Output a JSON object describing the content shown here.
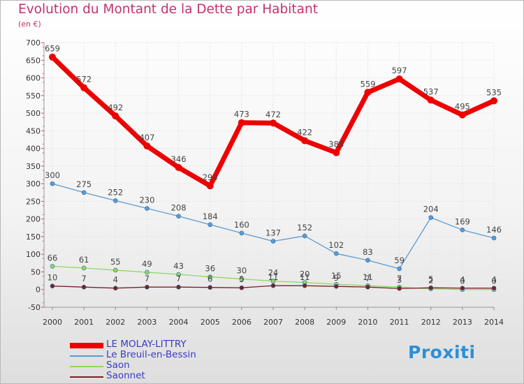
{
  "header": {
    "title": "Evolution du Montant de la Dette par Habitant",
    "subtitle": "(en €)"
  },
  "logo": {
    "text": "Proxiti"
  },
  "chart_data": {
    "type": "line",
    "title": "Evolution du Montant de la Dette par Habitant",
    "subtitle": "(en €)",
    "xlabel": "",
    "ylabel": "",
    "x": [
      "2000",
      "2001",
      "2002",
      "2003",
      "2004",
      "2005",
      "2006",
      "2007",
      "2008",
      "2009",
      "2010",
      "2011",
      "2012",
      "2013",
      "2014"
    ],
    "ylim": [
      -50,
      700
    ],
    "yticks": [
      -50,
      0,
      50,
      100,
      150,
      200,
      250,
      300,
      350,
      400,
      450,
      500,
      550,
      600,
      650,
      700
    ],
    "grid": true,
    "legend_position": "bottom-left",
    "series": [
      {
        "name": "LE MOLAY-LITTRY",
        "color": "#ee0000",
        "values": [
          659,
          572,
          492,
          407,
          346,
          294,
          473,
          472,
          422,
          388,
          559,
          597,
          537,
          495,
          535
        ],
        "labels": [
          "659",
          "572",
          "492",
          "407",
          "346",
          "294",
          "473",
          "472",
          "422",
          "388",
          "559",
          "597",
          "537",
          "495",
          "535"
        ]
      },
      {
        "name": "Le Breuil-en-Bessin",
        "color": "#5a9bd3",
        "values": [
          300,
          275,
          252,
          230,
          208,
          184,
          160,
          137,
          152,
          102,
          83,
          59,
          204,
          169,
          146
        ],
        "labels": [
          "300",
          "275",
          "252",
          "230",
          "208",
          "184",
          "160",
          "137",
          "152",
          "102",
          "83",
          "59",
          "204",
          "169",
          "146"
        ]
      },
      {
        "name": "Saon",
        "color": "#8ed860",
        "values": [
          66,
          61,
          55,
          49,
          43,
          36,
          30,
          24,
          20,
          15,
          11,
          7,
          2,
          0,
          0
        ],
        "labels": [
          "66",
          "61",
          "55",
          "49",
          "43",
          "36",
          "30",
          "24",
          "20",
          "15",
          "11",
          "7",
          "2",
          "0",
          "0"
        ]
      },
      {
        "name": "Saonnet",
        "color": "#7a1f2a",
        "values": [
          10,
          7,
          4,
          7,
          7,
          6,
          5,
          11,
          11,
          9,
          7,
          3,
          5,
          4,
          4
        ],
        "labels": [
          "10",
          "7",
          "4",
          "7",
          "7",
          "6",
          "5",
          "11",
          "11",
          "9",
          "7",
          "3",
          "5",
          "4",
          "4"
        ]
      }
    ]
  }
}
